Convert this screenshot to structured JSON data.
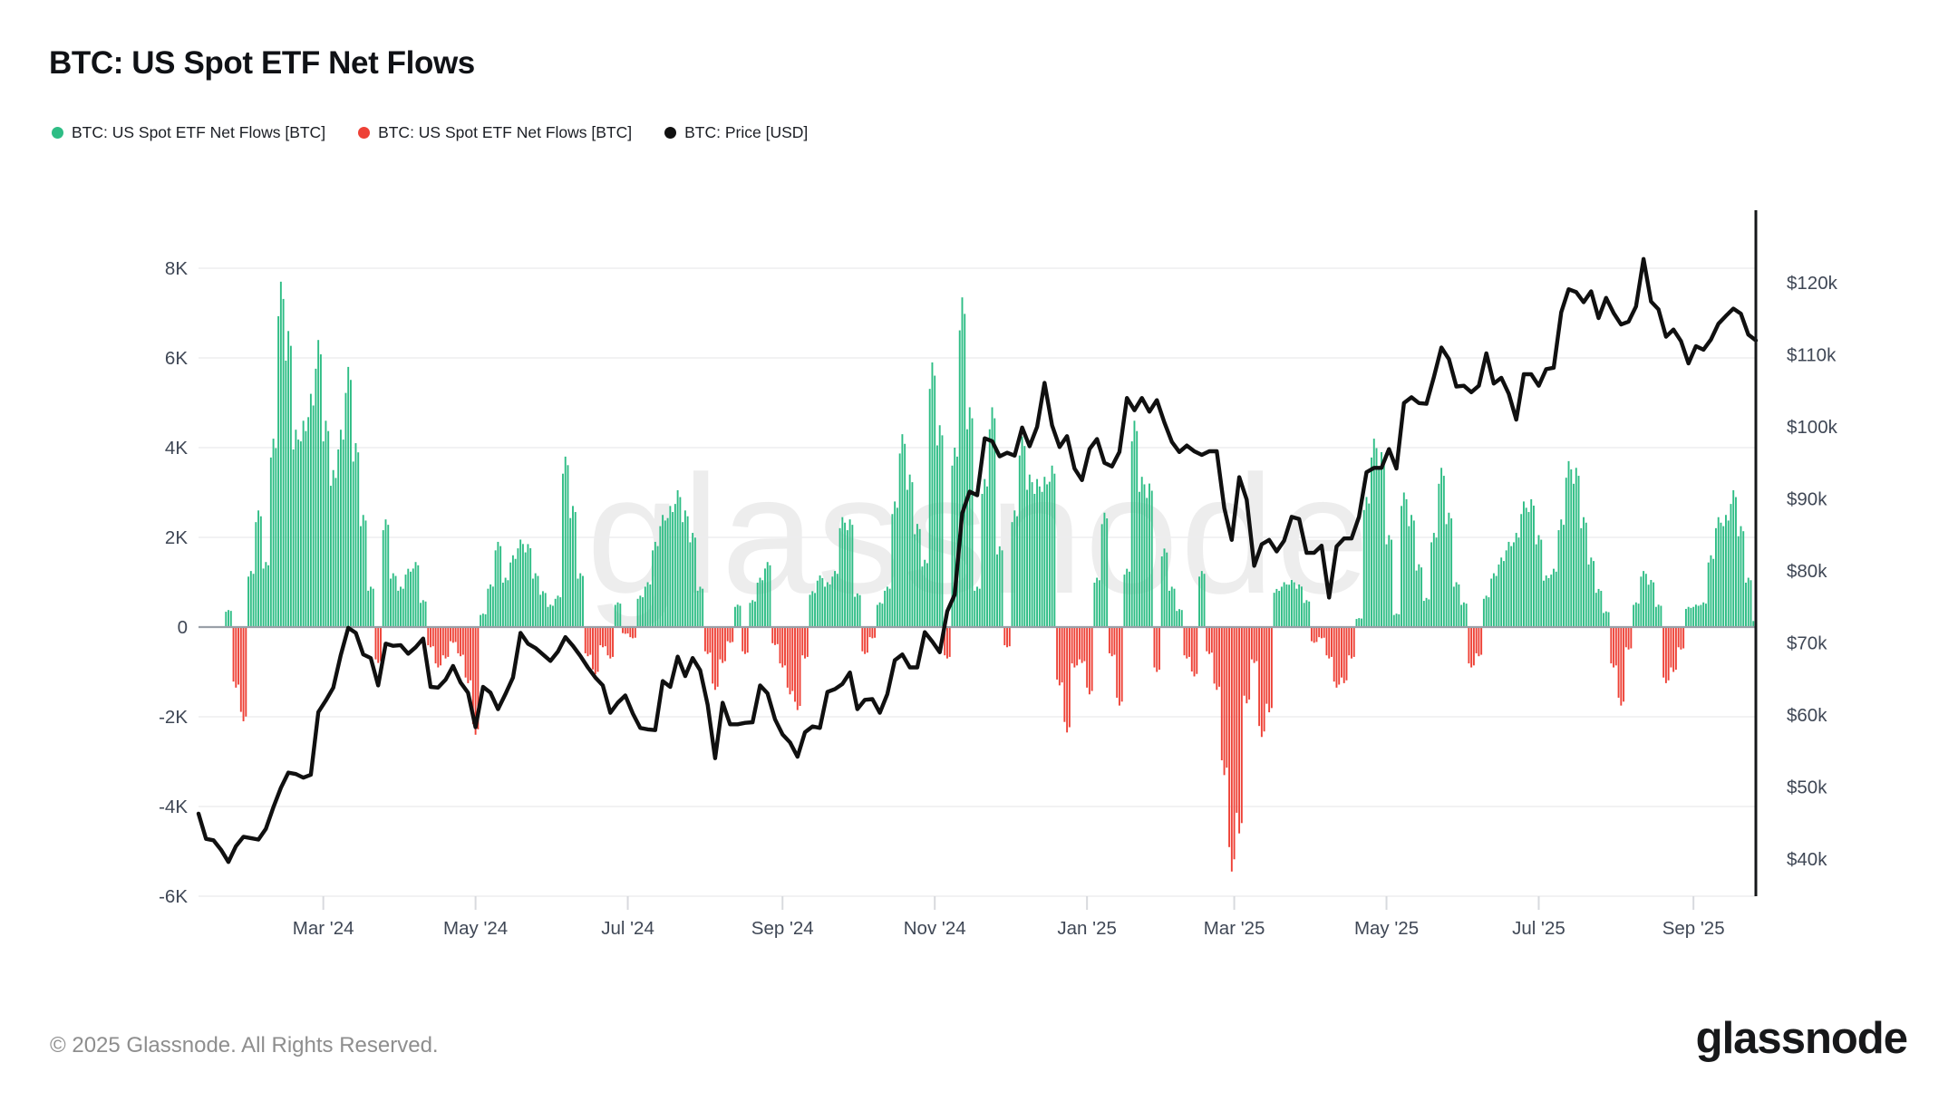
{
  "header": {
    "title": "BTC: US Spot ETF Net Flows"
  },
  "legend": {
    "items": [
      {
        "label": "BTC: US Spot ETF Net Flows [BTC]",
        "color": "#2ebd85"
      },
      {
        "label": "BTC: US Spot ETF Net Flows [BTC]",
        "color": "#ee4136"
      },
      {
        "label": "BTC: Price [USD]",
        "color": "#111111"
      }
    ]
  },
  "watermark": "glassnode",
  "footer": {
    "copyright": "© 2025 Glassnode. All Rights Reserved.",
    "logo": "glassnode"
  },
  "chart_data": {
    "type": "bar+line",
    "title": "BTC: US Spot ETF Net Flows",
    "series_names": [
      "BTC: US Spot ETF Net Flows [BTC] (inflow)",
      "BTC: US Spot ETF Net Flows [BTC] (outflow)",
      "BTC: Price [USD]"
    ],
    "start_date": "2024-01-11",
    "end_date": "2025-09-26",
    "step_days": 3,
    "flows_btc": [
      0,
      0,
      0,
      0,
      380,
      -1350,
      -2100,
      1250,
      2600,
      1450,
      4200,
      7700,
      6600,
      4400,
      4600,
      5200,
      6400,
      4600,
      3500,
      4400,
      5800,
      4100,
      2500,
      900,
      -800,
      2400,
      1200,
      900,
      1300,
      1450,
      600,
      -450,
      -900,
      -700,
      -350,
      -650,
      -1250,
      -2400,
      300,
      950,
      1900,
      1100,
      1600,
      1950,
      1850,
      1200,
      800,
      500,
      700,
      3800,
      2700,
      1200,
      -650,
      -1050,
      -450,
      -700,
      550,
      -150,
      -250,
      700,
      1000,
      1900,
      2500,
      2700,
      3050,
      2600,
      2100,
      900,
      -600,
      -1400,
      -800,
      -350,
      500,
      -600,
      600,
      1100,
      1450,
      -400,
      -900,
      -1500,
      -1850,
      -700,
      800,
      1150,
      1000,
      1250,
      2450,
      2400,
      750,
      -600,
      -250,
      550,
      900,
      2800,
      4300,
      3400,
      2300,
      1500,
      5900,
      4500,
      -700,
      4000,
      7350,
      4900,
      900,
      3300,
      4900,
      1800,
      -450,
      2600,
      4250,
      3400,
      3300,
      3350,
      3600,
      -1300,
      -2350,
      -900,
      -800,
      -1500,
      1100,
      2550,
      -650,
      -1750,
      1300,
      4600,
      3350,
      3200,
      -1000,
      1750,
      900,
      400,
      -700,
      -1100,
      1250,
      -600,
      -1400,
      -3300,
      -5450,
      -4600,
      -1700,
      -800,
      -2450,
      -1900,
      850,
      1000,
      1050,
      950,
      600,
      -350,
      -250,
      -700,
      -1350,
      -1250,
      -700,
      200,
      2900,
      4200,
      3900,
      2050,
      300,
      3000,
      2500,
      1400,
      650,
      2100,
      3550,
      2550,
      1000,
      550,
      -900,
      -650,
      700,
      1200,
      1550,
      1900,
      2100,
      2800,
      2850,
      2050,
      1150,
      1300,
      2400,
      3700,
      3550,
      2450,
      1550,
      850,
      350,
      -900,
      -1750,
      -500,
      550,
      1250,
      1050,
      500,
      -1250,
      -1000,
      -500,
      450,
      500,
      550,
      1600,
      2450,
      2500,
      3050,
      2250,
      1100,
      150
    ],
    "price_usd_k": [
      46.3,
      42.8,
      42.6,
      41.3,
      39.6,
      41.8,
      43.1,
      42.9,
      42.7,
      44.2,
      47.2,
      49.9,
      52.0,
      51.8,
      51.3,
      51.7,
      60.4,
      62.0,
      63.8,
      68.3,
      72.1,
      71.4,
      68.4,
      67.9,
      64.1,
      69.9,
      69.6,
      69.7,
      68.5,
      69.4,
      70.6,
      63.9,
      63.8,
      64.9,
      66.8,
      64.5,
      63.1,
      58.3,
      63.9,
      63.1,
      60.8,
      62.9,
      65.2,
      71.4,
      69.9,
      69.3,
      68.4,
      67.5,
      68.8,
      70.8,
      69.6,
      68.2,
      66.6,
      65.2,
      64.1,
      60.3,
      61.7,
      62.7,
      60.2,
      58.2,
      58.0,
      57.9,
      64.7,
      63.9,
      68.1,
      65.4,
      67.9,
      66.2,
      61.4,
      54.0,
      61.7,
      58.7,
      58.7,
      58.9,
      59.0,
      64.1,
      63.0,
      59.4,
      57.3,
      56.2,
      54.2,
      57.6,
      58.4,
      58.2,
      63.2,
      63.6,
      64.3,
      65.9,
      60.8,
      62.1,
      62.2,
      60.3,
      62.9,
      67.6,
      68.4,
      66.6,
      66.6,
      71.5,
      70.2,
      68.7,
      74.4,
      76.7,
      88.0,
      91.0,
      90.5,
      98.4,
      98.0,
      95.9,
      96.4,
      96.0,
      99.9,
      97.3,
      100.0,
      106.1,
      100.2,
      97.2,
      98.7,
      94.2,
      92.6,
      96.9,
      98.3,
      95.0,
      94.5,
      96.5,
      104.0,
      102.3,
      104.0,
      102.1,
      103.7,
      100.6,
      97.9,
      96.5,
      97.4,
      96.6,
      96.1,
      96.6,
      96.6,
      88.7,
      84.3,
      93.0,
      89.9,
      80.7,
      83.7,
      84.3,
      82.7,
      84.2,
      87.5,
      87.2,
      82.5,
      82.5,
      83.5,
      76.3,
      83.4,
      84.5,
      84.5,
      87.5,
      93.7,
      94.3,
      94.3,
      96.9,
      94.2,
      103.3,
      104.1,
      103.3,
      103.2,
      106.9,
      111.0,
      109.4,
      105.6,
      105.7,
      104.8,
      105.7,
      110.2,
      106.0,
      106.8,
      104.6,
      101.0,
      107.3,
      107.3,
      105.7,
      108.0,
      108.2,
      115.9,
      119.1,
      118.7,
      117.3,
      118.8,
      115.1,
      117.9,
      115.8,
      114.2,
      114.6,
      116.7,
      123.3,
      117.4,
      116.3,
      112.5,
      113.5,
      111.9,
      108.8,
      111.2,
      110.7,
      112.1,
      114.3,
      115.4,
      116.4,
      115.7,
      112.8,
      112.0
    ],
    "left_axis": {
      "title": "Net Flows [BTC]",
      "ticks": [
        "8K",
        "6K",
        "4K",
        "2K",
        "0",
        "-2K",
        "-4K",
        "-6K"
      ],
      "tick_values": [
        8000,
        6000,
        4000,
        2000,
        0,
        -2000,
        -4000,
        -6000
      ],
      "range": [
        -6000,
        8000
      ],
      "grid": true
    },
    "right_axis": {
      "title": "Price [USD]",
      "ticks": [
        "$120k",
        "$110k",
        "$100k",
        "$90k",
        "$80k",
        "$70k",
        "$60k",
        "$50k",
        "$40k"
      ],
      "tick_values_k": [
        120,
        110,
        100,
        90,
        80,
        70,
        60,
        50,
        40
      ],
      "range_usd": [
        40000,
        120000
      ]
    },
    "x_ticks": [
      {
        "label": "Mar '24",
        "day": 50
      },
      {
        "label": "May '24",
        "day": 111
      },
      {
        "label": "Jul '24",
        "day": 172
      },
      {
        "label": "Sep '24",
        "day": 234
      },
      {
        "label": "Nov '24",
        "day": 295
      },
      {
        "label": "Jan '25",
        "day": 356
      },
      {
        "label": "Mar '25",
        "day": 415
      },
      {
        "label": "May '25",
        "day": 476
      },
      {
        "label": "Jul '25",
        "day": 537
      },
      {
        "label": "Sep '25",
        "day": 599
      }
    ],
    "colors": {
      "inflow": "#2ebd85",
      "outflow": "#ee4136",
      "price": "#101010",
      "grid": "#ededef",
      "zero_line": "#9aa0a8",
      "axis_line": "#15171a",
      "axis_text": "#3f4755"
    },
    "legend_position": "top-left"
  }
}
